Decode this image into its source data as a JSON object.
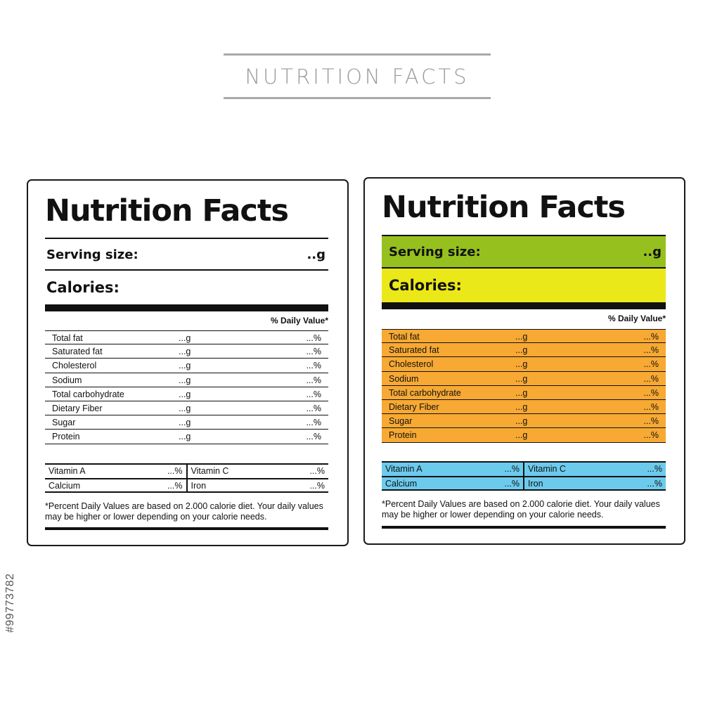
{
  "heading": {
    "title": "NUTRITION FACTS"
  },
  "labels": {
    "title": "Nutrition Facts",
    "serving_label": "Serving size:",
    "serving_value": "..g",
    "calories_label": "Calories:",
    "daily_value_header": "% Daily Value*",
    "nutrients": [
      {
        "name": "Total fat",
        "amount": "...g",
        "percent": "...%"
      },
      {
        "name": "Saturated fat",
        "amount": "...g",
        "percent": "...%"
      },
      {
        "name": "Cholesterol",
        "amount": "...g",
        "percent": "...%"
      },
      {
        "name": "Sodium",
        "amount": "...g",
        "percent": "...%"
      },
      {
        "name": "Total carbohydrate",
        "amount": "...g",
        "percent": "...%"
      },
      {
        "name": "Dietary Fiber",
        "amount": "...g",
        "percent": "...%"
      },
      {
        "name": "Sugar",
        "amount": "...g",
        "percent": "...%"
      },
      {
        "name": "Protein",
        "amount": "...g",
        "percent": "...%"
      }
    ],
    "vitamins": [
      {
        "name": "Vitamin A",
        "percent": "...%"
      },
      {
        "name": "Vitamin C",
        "percent": "...%"
      },
      {
        "name": "Calcium",
        "percent": "...%"
      },
      {
        "name": "Iron",
        "percent": "...%"
      }
    ],
    "footnote": "*Percent Daily Values are based on 2.000 calorie diet. Your daily values may be higher or lower depending on your calorie needs."
  },
  "colors": {
    "serving_band": "#96c01d",
    "calories_band": "#ebe81a",
    "nutrient_band": "#f7a933",
    "vitamin_band": "#6ccbed"
  },
  "stock_id": "#99773782"
}
